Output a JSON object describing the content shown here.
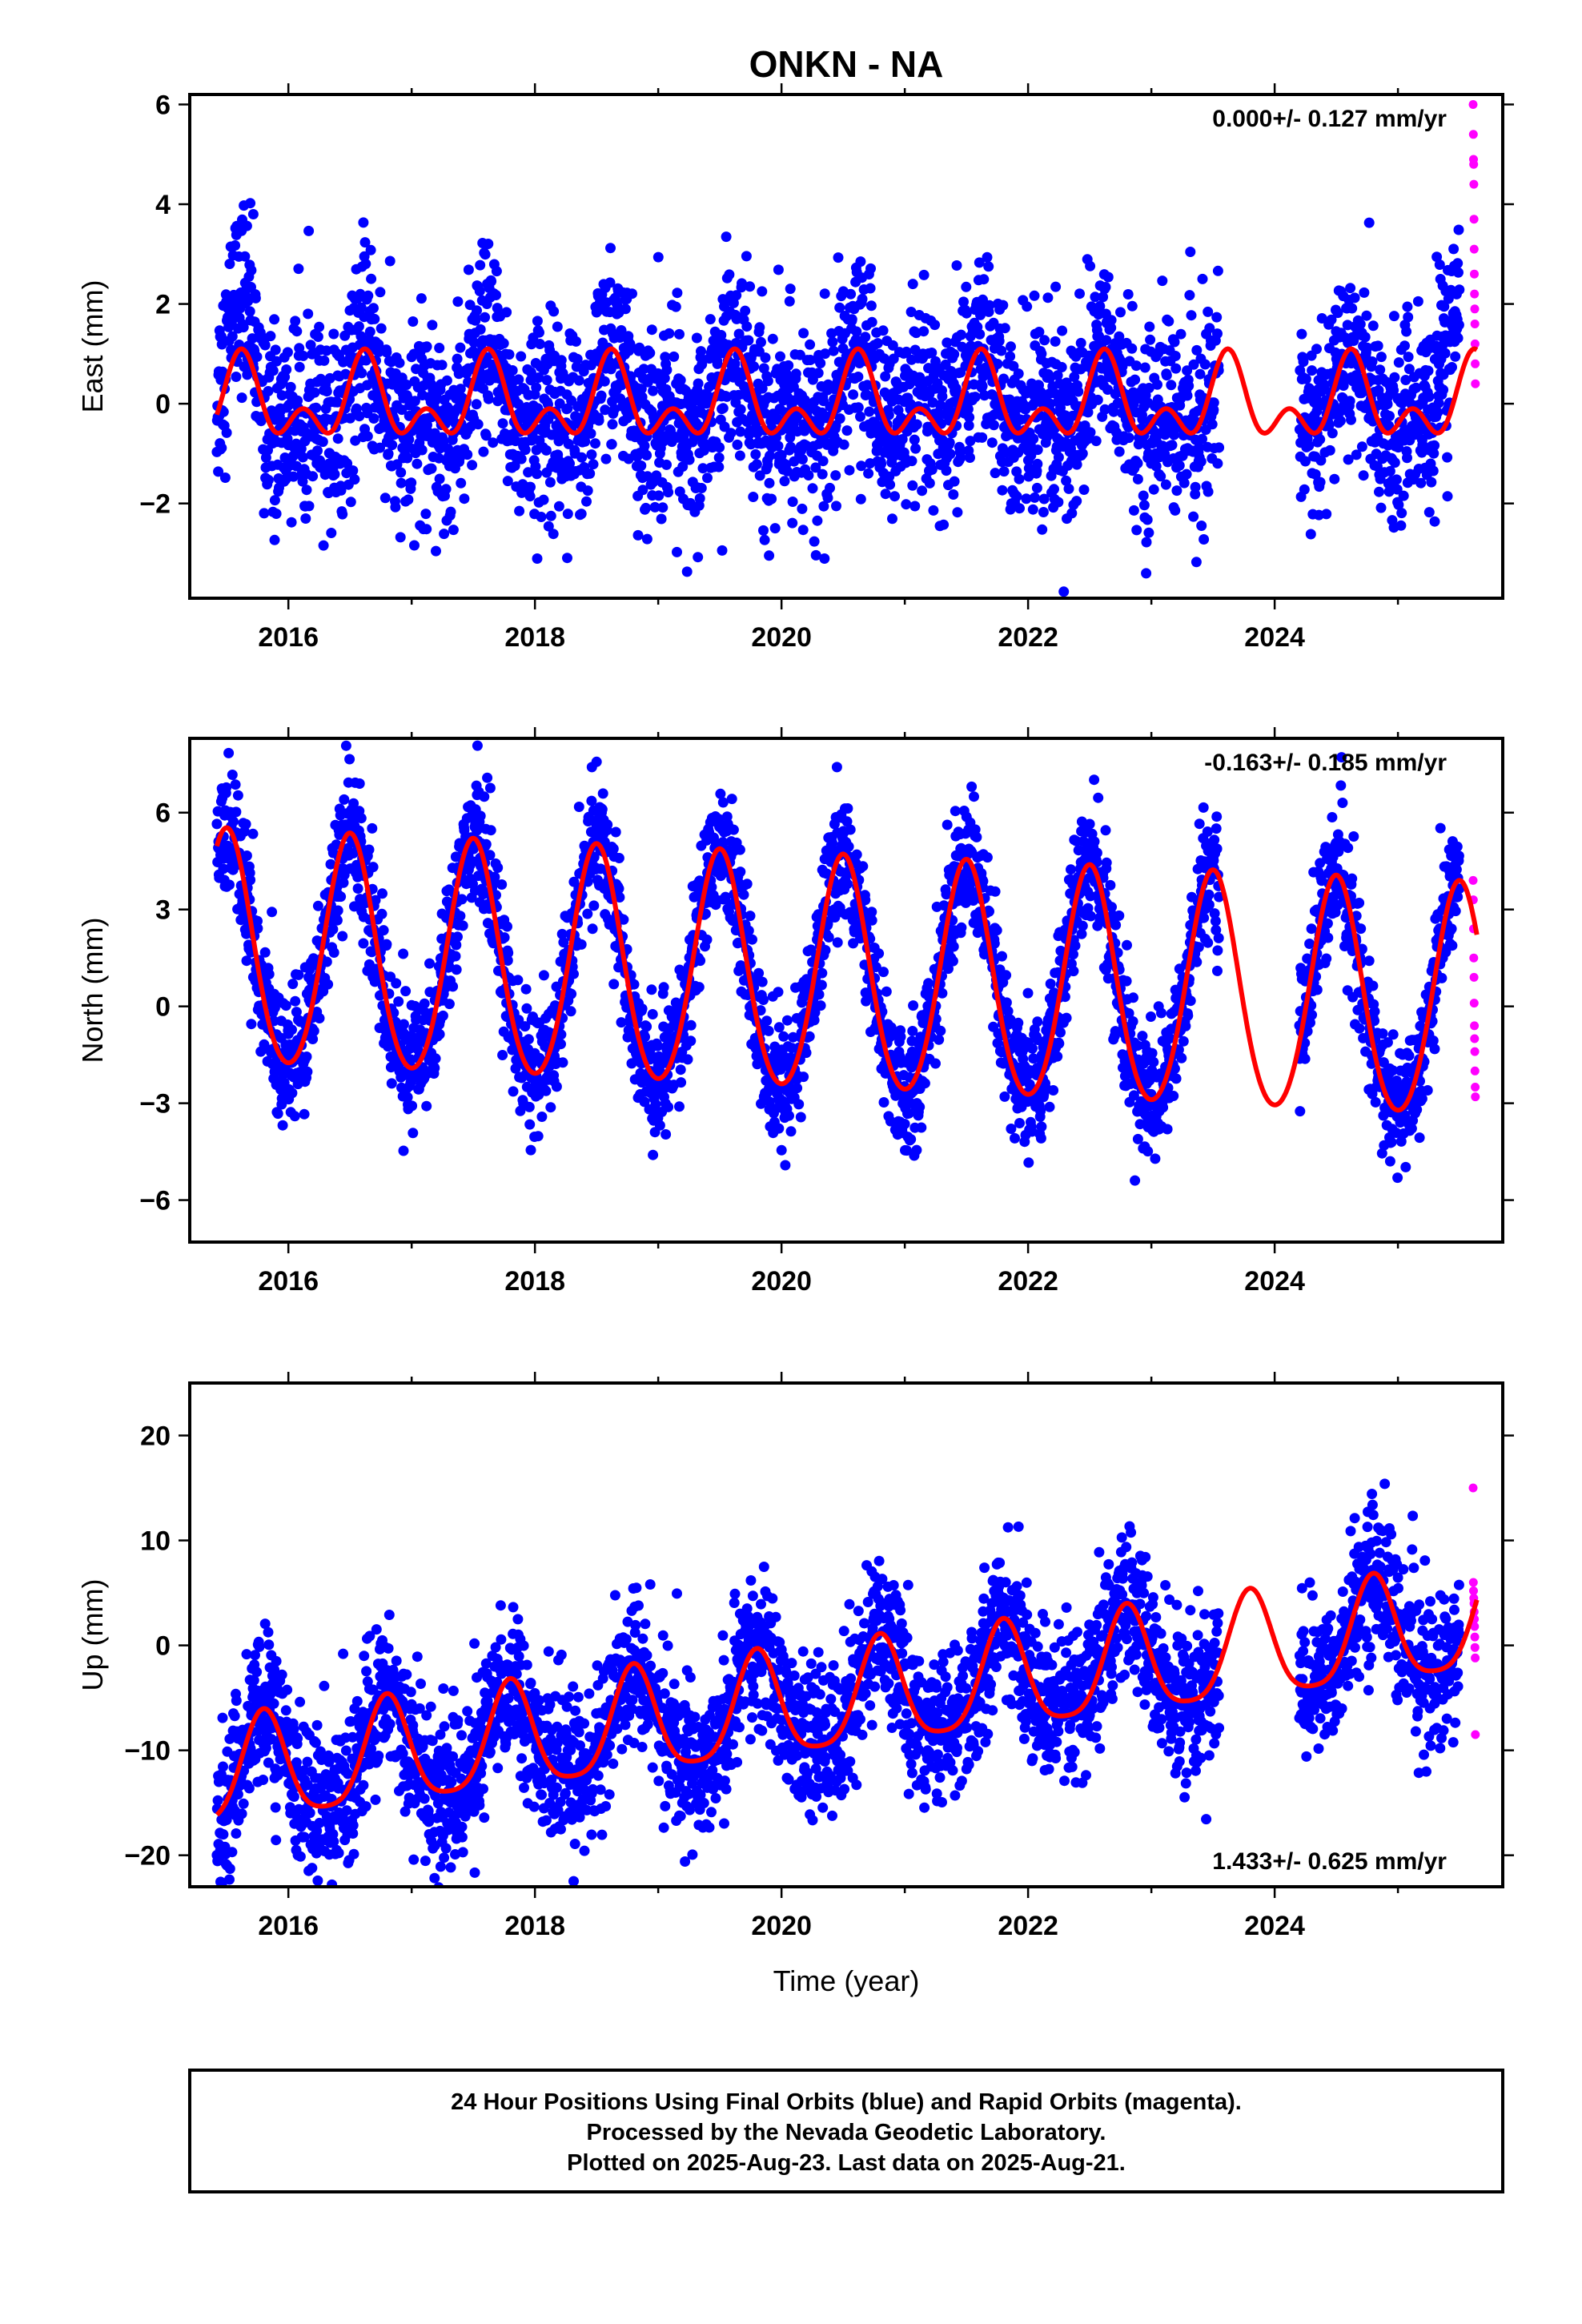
{
  "title": "ONKN - NA",
  "xlabel": "Time (year)",
  "colors": {
    "final": "#0000ff",
    "rapid": "#ff00ff",
    "fit": "#ff0000"
  },
  "footer": {
    "line1": "24 Hour Positions Using Final Orbits (blue) and Rapid Orbits (magenta).",
    "line2": "Processed by the Nevada Geodetic Laboratory.",
    "line3": "Plotted on 2025-Aug-23. Last data on 2025-Aug-21."
  },
  "chart_data": [
    {
      "type": "scatter",
      "ylabel": "East (mm)",
      "rate": "0.000+/- 0.127 mm/yr",
      "rate_position": "top-right",
      "xlim": [
        2015.2,
        2025.85
      ],
      "ylim": [
        -3.9,
        6.2
      ],
      "xticks": [
        2016,
        2018,
        2020,
        2022,
        2024
      ],
      "yticks": [
        -2,
        0,
        2,
        4,
        6
      ],
      "yticklabels": [
        "−2",
        "0",
        "2",
        "4",
        "6"
      ],
      "fit": {
        "offset": 0.0,
        "trend": 0.0,
        "annual_amp": 0.6,
        "annual_peak": 0.62,
        "semi_amp": 0.5,
        "semi_peak": 0.62
      },
      "noise_sd": 0.95,
      "gap": [
        2023.55,
        2024.2
      ],
      "final_span": [
        2015.42,
        2025.5
      ],
      "rapid_span": [
        2025.52,
        2025.64
      ],
      "rapid_values": [
        6.0,
        5.4,
        4.9,
        4.8,
        4.4,
        3.7,
        3.1,
        2.6,
        2.2,
        1.9,
        1.6,
        1.2,
        0.8,
        0.4
      ]
    },
    {
      "type": "scatter",
      "ylabel": "North (mm)",
      "rate": "-0.163+/- 0.185 mm/yr",
      "rate_position": "top-right",
      "xlim": [
        2015.2,
        2025.85
      ],
      "ylim": [
        -7.3,
        8.3
      ],
      "xticks": [
        2016,
        2018,
        2020,
        2022,
        2024
      ],
      "yticks": [
        -6,
        -3,
        0,
        3,
        6
      ],
      "yticklabels": [
        "−6",
        "−3",
        "0",
        "3",
        "6"
      ],
      "fit": {
        "offset": 0.9,
        "trend": -0.163,
        "annual_amp": 3.6,
        "annual_peak": 0.5,
        "semi_amp": 0.3,
        "semi_peak": 0.5
      },
      "noise_sd": 1.0,
      "gap": [
        2023.55,
        2024.2
      ],
      "final_span": [
        2015.42,
        2025.5
      ],
      "rapid_span": [
        2025.52,
        2025.64
      ],
      "rapid_values": [
        3.9,
        3.3,
        2.4,
        1.5,
        0.9,
        0.1,
        -0.6,
        -1.0,
        -1.4,
        -2.0,
        -2.5,
        -2.8
      ]
    },
    {
      "type": "scatter",
      "ylabel": "Up (mm)",
      "rate": "1.433+/- 0.625 mm/yr",
      "rate_position": "bottom-right",
      "xlim": [
        2015.2,
        2025.85
      ],
      "ylim": [
        -23,
        25
      ],
      "xticks": [
        2016,
        2018,
        2020,
        2022,
        2024
      ],
      "yticks": [
        -20,
        -10,
        0,
        10,
        20
      ],
      "yticklabels": [
        "−20",
        "−10",
        "0",
        "10",
        "20"
      ],
      "fit": {
        "offset": -6.0,
        "trend": 1.433,
        "annual_amp": 5.0,
        "annual_peak": 0.8,
        "semi_amp": 1.0,
        "semi_peak": 0.8
      },
      "noise_sd": 3.6,
      "gap": [
        2023.55,
        2024.2
      ],
      "final_span": [
        2015.42,
        2025.5
      ],
      "rapid_span": [
        2025.52,
        2025.64
      ],
      "rapid_values": [
        15.0,
        6.0,
        5.2,
        4.5,
        4.0,
        3.2,
        2.5,
        1.8,
        0.8,
        -0.2,
        -1.2,
        -8.5
      ]
    }
  ]
}
